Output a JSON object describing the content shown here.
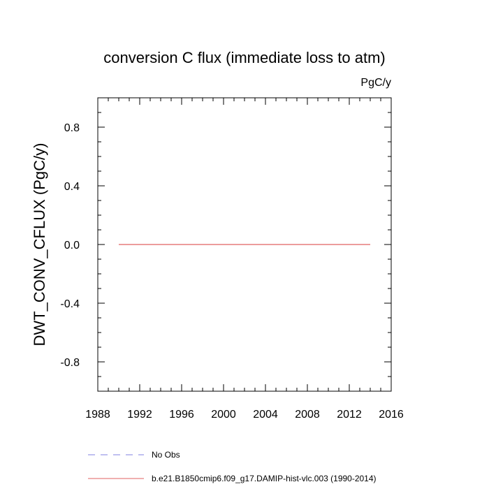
{
  "chart_data": {
    "type": "line",
    "title": "conversion C flux (immediate loss to atm)",
    "units": "PgC/y",
    "xlabel": "",
    "ylabel": "DWT_CONV_CFLUX  (PgC/y)",
    "xlim": [
      1988,
      2016
    ],
    "ylim": [
      -1.0,
      1.0
    ],
    "x_ticks": [
      1988,
      1992,
      1996,
      2000,
      2004,
      2008,
      2012,
      2016
    ],
    "x_tick_labels": [
      "1988",
      "1992",
      "1996",
      "2000",
      "2004",
      "2008",
      "2012",
      "2016"
    ],
    "y_ticks": [
      -0.8,
      -0.4,
      0.0,
      0.4,
      0.8
    ],
    "y_tick_labels": [
      "-0.8",
      "-0.4",
      "0.0",
      "0.4",
      "0.8"
    ],
    "grid": false,
    "series": [
      {
        "name": "b.e21.B1850cmip6.f09_g17.DAMIP-hist-vlc.003 (1990-2014)",
        "color": "#e06060",
        "x": [
          1990,
          2014
        ],
        "y": [
          0.0,
          0.0
        ]
      }
    ],
    "legend": [
      {
        "label": "No Obs",
        "color": "#8080e0",
        "style": "dashed"
      },
      {
        "label": "b.e21.B1850cmip6.f09_g17.DAMIP-hist-vlc.003 (1990-2014)",
        "color": "#e06060",
        "style": "solid"
      }
    ],
    "legend_position": "bottom"
  }
}
